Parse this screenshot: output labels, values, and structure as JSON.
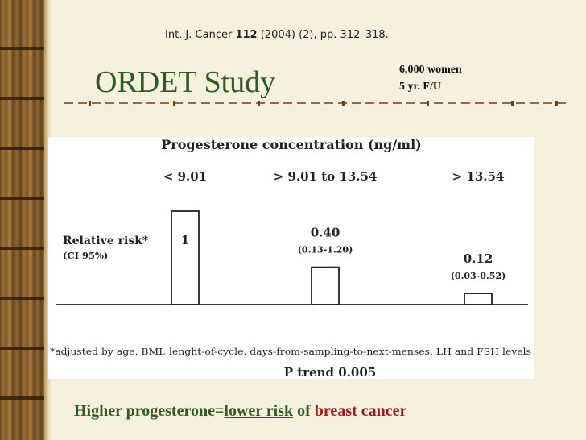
{
  "citation": {
    "journal": "Int. J. Cancer",
    "volume": "112",
    "rest": "(2004) (2), pp. 312–318."
  },
  "title": "ORDET Study",
  "study_info": {
    "line1": "6,000 women",
    "line2": "5 yr. F/U"
  },
  "footer": {
    "part1": "Higher progesterone=",
    "part2": "lower risk",
    "part3": " of ",
    "part4": "breast cancer"
  },
  "colors": {
    "title_green": "#2f5b22",
    "accent_red": "#a8141a",
    "divider_brown": "#6b3f1a"
  },
  "chart_data": {
    "type": "bar",
    "title": "Progesterone concentration (ng/ml)",
    "categories": [
      "< 9.01",
      "> 9.01 to 13.54",
      "> 13.54"
    ],
    "ylabel": "Relative risk*",
    "ylabel_sub": "(CI 95%)",
    "values": [
      1,
      0.4,
      0.12
    ],
    "value_labels": [
      "1",
      "0.40",
      "0.12"
    ],
    "ci_labels": [
      "",
      "(0.13-1.20)",
      "(0.03-0.52)"
    ],
    "ylim": [
      0,
      1
    ],
    "footnote": "*adjusted by age, BMI, lenght-of-cycle, days-from-sampling-to-next-menses, LH and FSH levels",
    "trend": "P trend 0.005",
    "grid": false
  }
}
